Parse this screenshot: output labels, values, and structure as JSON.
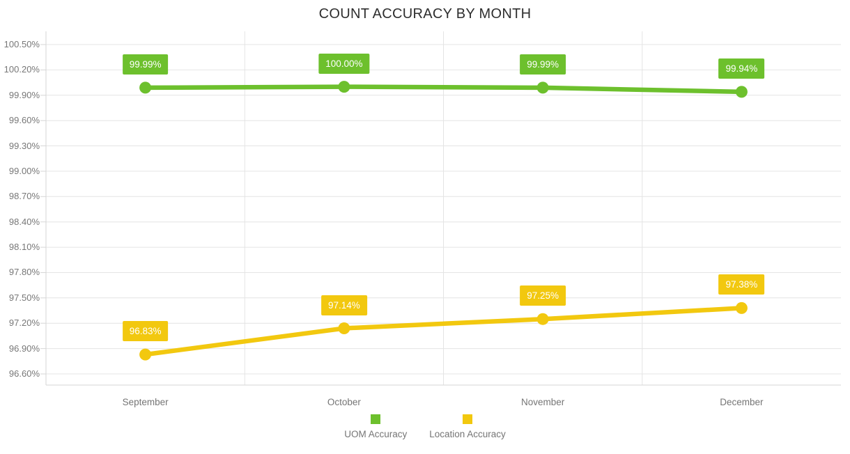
{
  "page": {
    "background": "#ffffff"
  },
  "chart_data": {
    "type": "line",
    "title": "COUNT ACCURACY BY MONTH",
    "categories": [
      "September",
      "October",
      "November",
      "December"
    ],
    "series": [
      {
        "name": "UOM Accuracy",
        "color": "#6dc02d",
        "values": [
          99.99,
          100.0,
          99.99,
          99.94
        ],
        "data_labels": [
          "99.99%",
          "100.00%",
          "99.99%",
          "99.94%"
        ]
      },
      {
        "name": "Location Accuracy",
        "color": "#f2c80f",
        "values": [
          96.83,
          97.14,
          97.25,
          97.38
        ],
        "data_labels": [
          "96.83%",
          "97.14%",
          "97.25%",
          "97.38%"
        ]
      }
    ],
    "y_axis": {
      "min": 96.6,
      "max": 100.5,
      "step": 0.3,
      "tick_labels": [
        "100.50%",
        "100.20%",
        "99.90%",
        "99.60%",
        "99.30%",
        "99.00%",
        "98.70%",
        "98.40%",
        "98.10%",
        "97.80%",
        "97.50%",
        "97.20%",
        "96.90%",
        "96.60%"
      ]
    },
    "legend_position": "bottom",
    "grid": true,
    "colors": {
      "gridline": "#e4e4e4",
      "axis_line": "#d6d6d6",
      "axis_text": "#777777",
      "title_text": "#2e2e2e",
      "data_label_text": "#ffffff"
    }
  }
}
